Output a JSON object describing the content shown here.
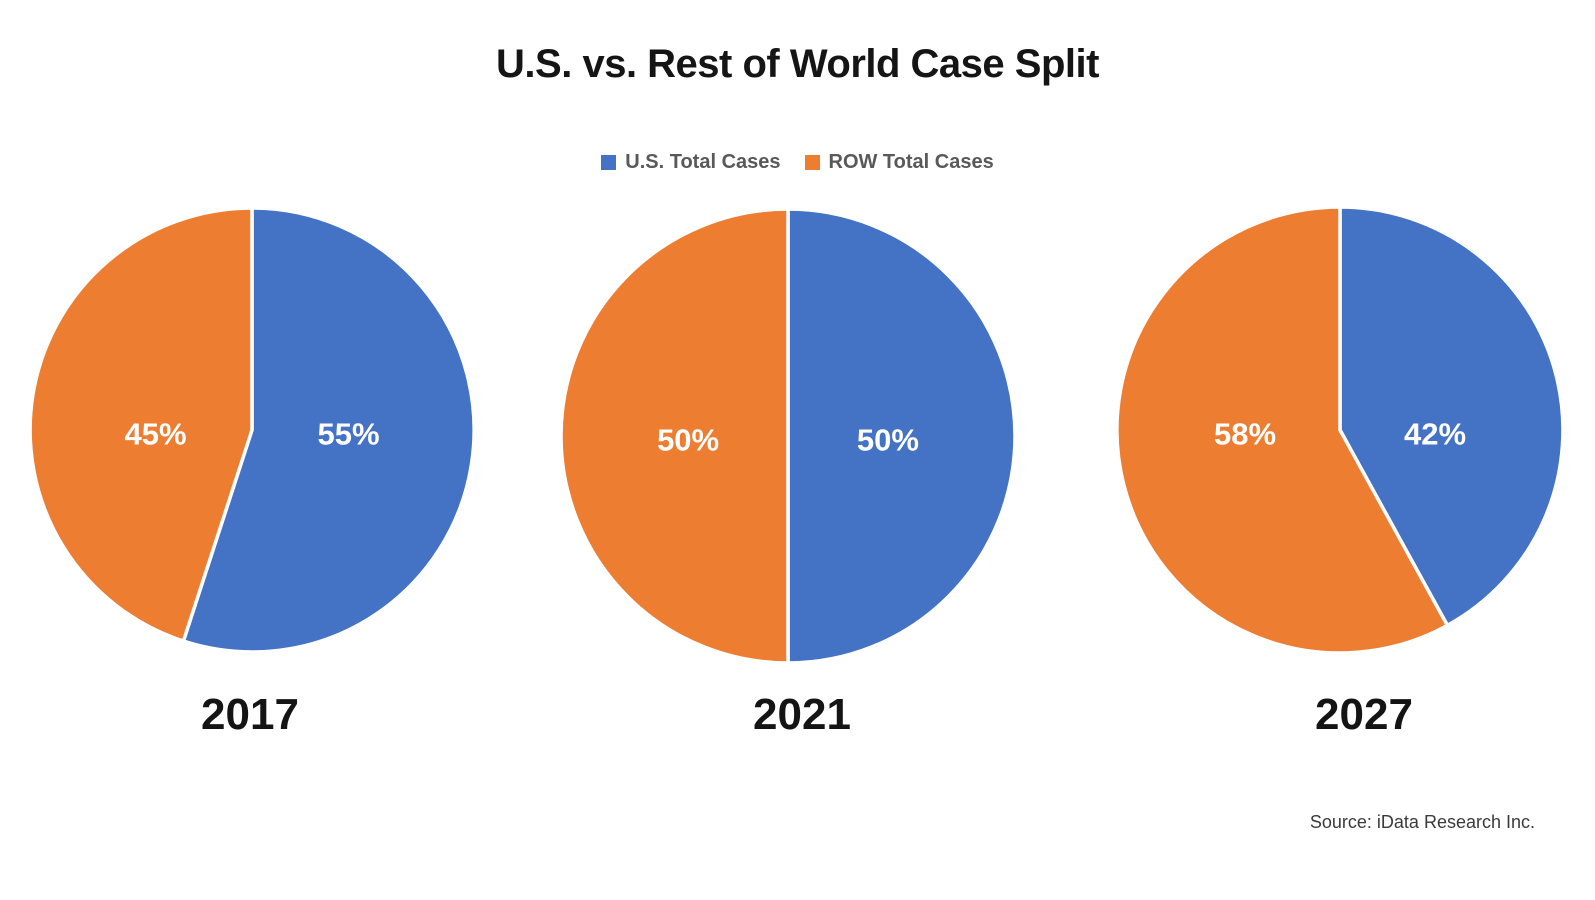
{
  "title": "U.S. vs. Rest of World Case Split",
  "legend": [
    {
      "label": "U.S. Total Cases",
      "color_key": "us"
    },
    {
      "label": "ROW Total Cases",
      "color_key": "row"
    }
  ],
  "source": "Source: iData Research Inc.",
  "chart_data": {
    "type": "pie",
    "title": "U.S. vs. Rest of World Case Split",
    "legend_position": "top",
    "legend_entries": [
      "U.S. Total Cases",
      "ROW Total Cases"
    ],
    "colors": {
      "us": "#4472C4",
      "row": "#ED7D31"
    },
    "pies": [
      {
        "year": "2017",
        "slices": [
          {
            "name": "U.S. Total Cases",
            "value": 55,
            "label": "55%",
            "color_key": "us"
          },
          {
            "name": "ROW Total Cases",
            "value": 45,
            "label": "45%",
            "color_key": "row"
          }
        ]
      },
      {
        "year": "2021",
        "slices": [
          {
            "name": "U.S. Total Cases",
            "value": 50,
            "label": "50%",
            "color_key": "us"
          },
          {
            "name": "ROW Total Cases",
            "value": 50,
            "label": "50%",
            "color_key": "row"
          }
        ]
      },
      {
        "year": "2027",
        "slices": [
          {
            "name": "U.S. Total Cases",
            "value": 42,
            "label": "42%",
            "color_key": "us"
          },
          {
            "name": "ROW Total Cases",
            "value": 58,
            "label": "58%",
            "color_key": "row"
          }
        ]
      }
    ]
  }
}
